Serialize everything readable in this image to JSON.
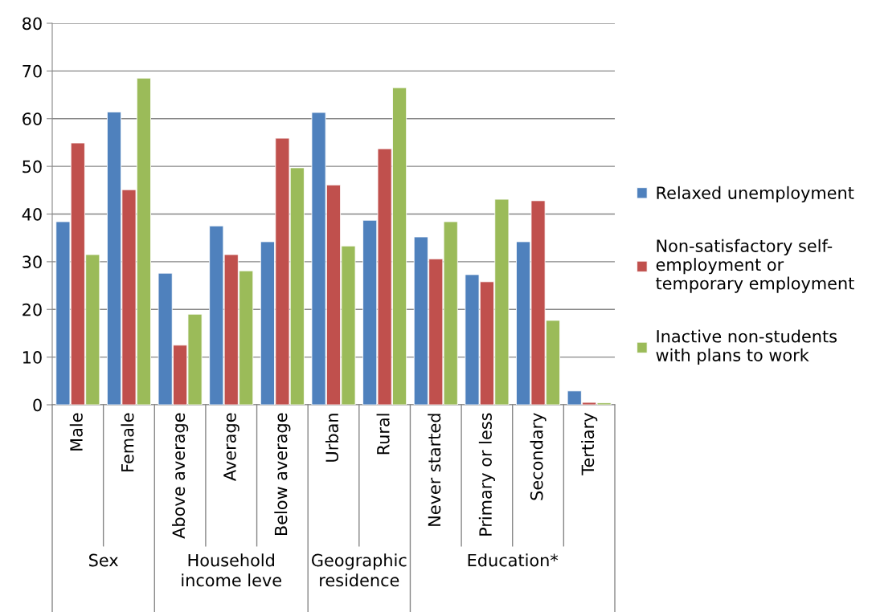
{
  "chart_data": {
    "type": "bar",
    "categories": [
      "Male",
      "Female",
      "Above average",
      "Average",
      "Below average",
      "Urban",
      "Rural",
      "Never started",
      "Primary or less",
      "Secondary",
      "Tertiary"
    ],
    "series": [
      {
        "name": "Relaxed unemployment",
        "color": "#4f81bd",
        "values": [
          38.4,
          61.4,
          27.6,
          37.5,
          34.2,
          61.3,
          38.7,
          35.2,
          27.3,
          34.2,
          2.9
        ]
      },
      {
        "name": "Non-satisfactory self-\nemployment or\ntemporary employment",
        "color": "#c0504d",
        "values": [
          54.9,
          45.1,
          12.5,
          31.5,
          55.9,
          46.1,
          53.7,
          30.6,
          25.8,
          42.8,
          0.5
        ]
      },
      {
        "name": "Inactive non-students\nwith plans to work",
        "color": "#9bbb59",
        "values": [
          31.5,
          68.5,
          19.0,
          28.1,
          49.7,
          33.3,
          66.5,
          38.4,
          43.1,
          17.7,
          0.4
        ]
      }
    ],
    "annotations": [
      "Sex",
      "Household\nincome leve",
      "Geographic\nresidence",
      "Education*"
    ],
    "ylim": [
      0,
      80
    ],
    "yticks": [
      0,
      10,
      20,
      30,
      40,
      50,
      60,
      70,
      80
    ],
    "grid": "y",
    "legend": "right"
  }
}
